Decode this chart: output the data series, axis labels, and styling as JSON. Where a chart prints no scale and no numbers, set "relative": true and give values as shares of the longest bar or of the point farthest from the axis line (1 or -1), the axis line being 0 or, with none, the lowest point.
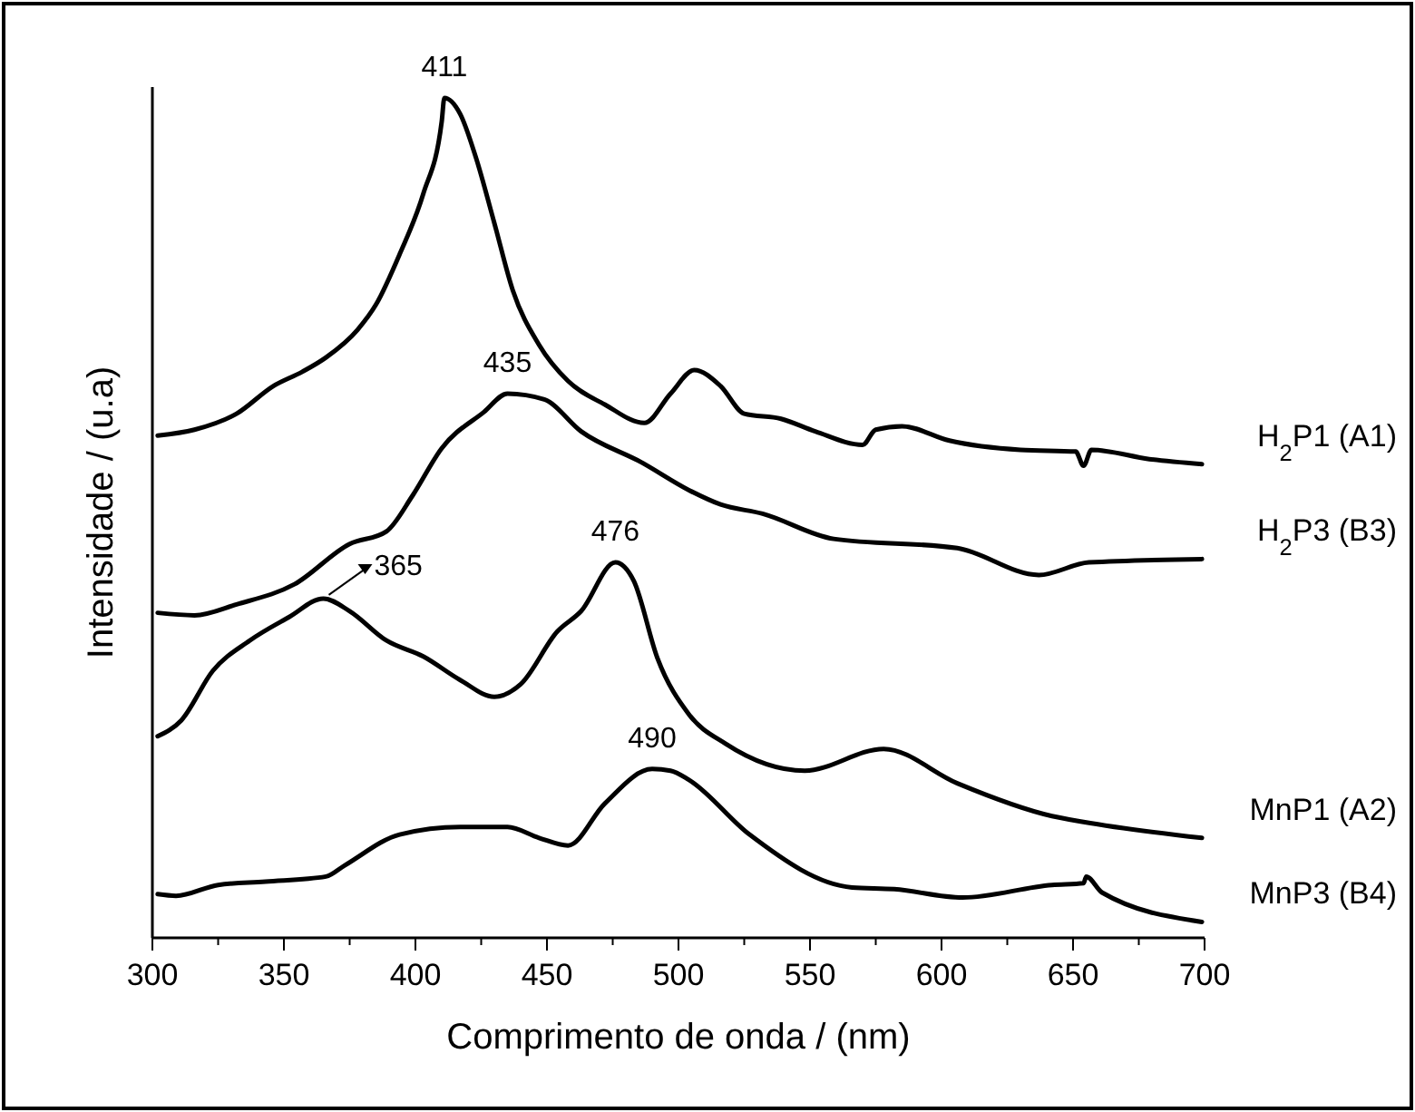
{
  "chart_data": {
    "type": "line",
    "relative": true,
    "xlabel": "Comprimento de onda / (nm)",
    "ylabel": "Intensidade / (u.a)",
    "xlim": [
      300,
      700
    ],
    "xticks": [
      300,
      350,
      400,
      450,
      500,
      550,
      600,
      650,
      700
    ],
    "series": [
      {
        "name": "H$_{2}$P1 (A1)",
        "color": "#000000",
        "x": [
          302,
          316,
          332,
          346,
          357,
          366,
          378,
          385,
          394,
          403,
          410,
          411,
          417,
          423,
          430,
          437,
          447,
          458,
          472,
          487,
          497,
          506,
          516,
          525,
          539,
          552,
          570,
          575,
          585,
          603,
          630,
          651,
          654,
          657,
          679,
          699
        ],
        "values": [
          0.598,
          0.605,
          0.624,
          0.657,
          0.674,
          0.691,
          0.724,
          0.754,
          0.814,
          0.886,
          0.972,
          1.0,
          0.981,
          0.929,
          0.851,
          0.771,
          0.706,
          0.663,
          0.635,
          0.613,
          0.648,
          0.676,
          0.657,
          0.624,
          0.618,
          0.603,
          0.587,
          0.605,
          0.609,
          0.592,
          0.581,
          0.579,
          0.562,
          0.581,
          0.57,
          0.564
        ]
      },
      {
        "name": "H$_{2}$P3 (B3)",
        "color": "#000000",
        "x": [
          302,
          316,
          332,
          354,
          375,
          389,
          399,
          410,
          426,
          435,
          449,
          463,
          486,
          504,
          516,
          532,
          559,
          606,
          637,
          656,
          699
        ],
        "values": [
          0.387,
          0.384,
          0.397,
          0.421,
          0.469,
          0.484,
          0.527,
          0.583,
          0.626,
          0.648,
          0.641,
          0.603,
          0.566,
          0.533,
          0.516,
          0.505,
          0.475,
          0.464,
          0.432,
          0.447,
          0.451
        ]
      },
      {
        "name": "MnP1 (A2)",
        "color": "#000000",
        "x": [
          302,
          311,
          323,
          337,
          352,
          365,
          375,
          389,
          403,
          417,
          430,
          440,
          454,
          463,
          476,
          483,
          492,
          504,
          518,
          548,
          578,
          606,
          642,
          654,
          699
        ],
        "values": [
          0.24,
          0.259,
          0.318,
          0.354,
          0.382,
          0.404,
          0.389,
          0.354,
          0.335,
          0.307,
          0.287,
          0.302,
          0.365,
          0.389,
          0.447,
          0.425,
          0.333,
          0.266,
          0.231,
          0.199,
          0.225,
          0.184,
          0.145,
          0.138,
          0.119
        ]
      },
      {
        "name": "MnP3 (B4)",
        "color": "#000000",
        "x": [
          302,
          309,
          325,
          343,
          366,
          373,
          394,
          417,
          435,
          447,
          458,
          472,
          490,
          497,
          504,
          527,
          566,
          582,
          608,
          642,
          654,
          655,
          661,
          699
        ],
        "values": [
          0.052,
          0.05,
          0.063,
          0.067,
          0.073,
          0.086,
          0.123,
          0.132,
          0.132,
          0.119,
          0.11,
          0.16,
          0.201,
          0.199,
          0.188,
          0.123,
          0.06,
          0.058,
          0.048,
          0.063,
          0.065,
          0.073,
          0.054,
          0.019
        ]
      }
    ],
    "annotations": [
      {
        "text": "411",
        "x": 411,
        "y": 1.0
      },
      {
        "text": "435",
        "x": 435,
        "y": 0.648
      },
      {
        "text": "365",
        "x": 365,
        "y": 0.404
      },
      {
        "text": "476",
        "x": 476,
        "y": 0.447
      },
      {
        "text": "490",
        "x": 490,
        "y": 0.201
      }
    ]
  }
}
